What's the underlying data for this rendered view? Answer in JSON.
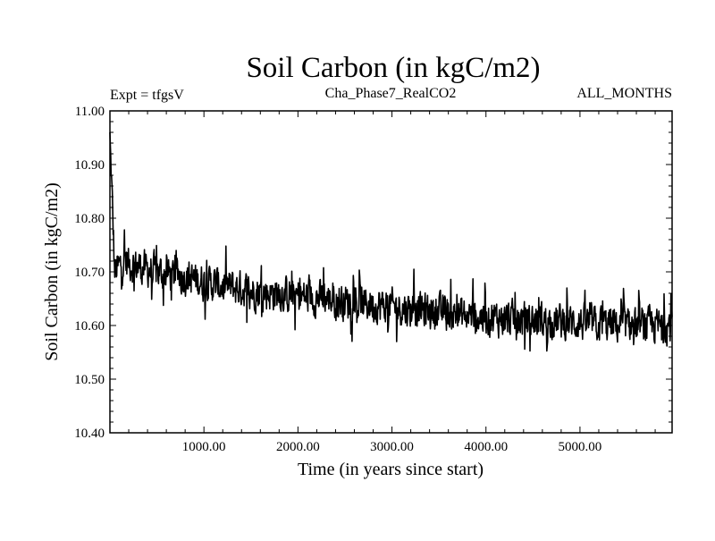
{
  "chart_data": {
    "type": "line",
    "title": "Soil Carbon (in kgC/m2)",
    "subtitle_left": "Expt = tfgsV",
    "subtitle_center": "Cha_Phase7_RealCO2",
    "subtitle_right": "ALL_MONTHS",
    "xlabel": "Time (in years since start)",
    "ylabel": "Soil Carbon (in kgC/m2)",
    "xlim": [
      0,
      5980
    ],
    "ylim": [
      10.4,
      11.0
    ],
    "x_ticks": [
      1000,
      2000,
      3000,
      4000,
      5000
    ],
    "x_tick_labels": [
      "1000.00",
      "2000.00",
      "3000.00",
      "4000.00",
      "5000.00"
    ],
    "y_ticks": [
      10.4,
      10.5,
      10.6,
      10.7,
      10.8,
      10.9,
      11.0
    ],
    "y_tick_labels": [
      "10.40",
      "10.50",
      "10.60",
      "10.70",
      "10.80",
      "10.90",
      "11.00"
    ],
    "series": [
      {
        "name": "Soil Carbon",
        "color": "#000000",
        "trend": {
          "x": [
            0,
            50,
            150,
            300,
            500,
            800,
            1000,
            1500,
            2000,
            2500,
            3000,
            3500,
            4000,
            4500,
            5000,
            5500,
            5980
          ],
          "y": [
            10.96,
            10.7,
            10.72,
            10.71,
            10.7,
            10.69,
            10.68,
            10.665,
            10.655,
            10.645,
            10.635,
            10.625,
            10.615,
            10.61,
            10.605,
            10.6,
            10.6
          ]
        },
        "noise_amplitude": 0.045,
        "samples": 1400
      }
    ]
  }
}
